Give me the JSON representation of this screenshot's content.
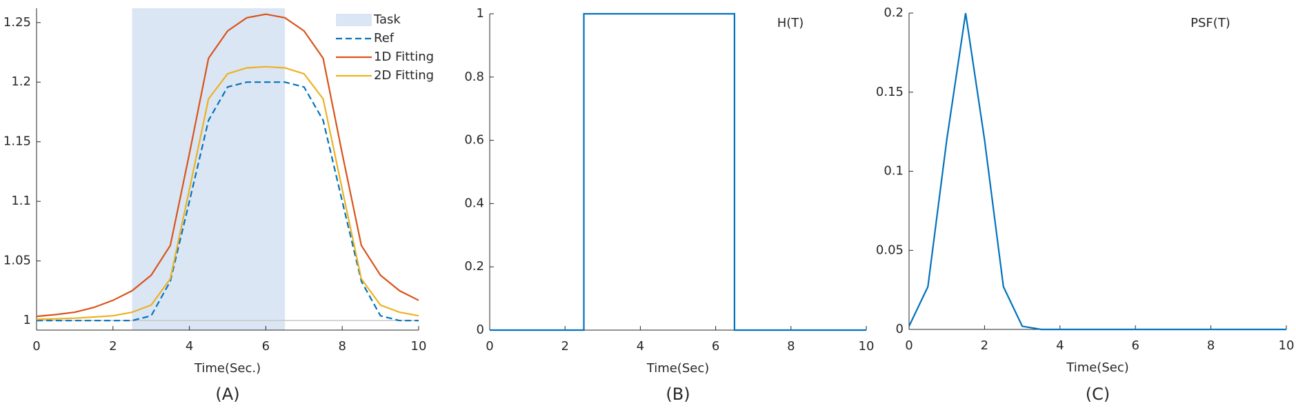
{
  "chart_data": [
    {
      "type": "line",
      "caption": "(A)",
      "x_label": "Time(Sec.)",
      "x": [
        0,
        0.5,
        1,
        1.5,
        2,
        2.5,
        3,
        3.5,
        4,
        4.5,
        5,
        5.5,
        6,
        6.5,
        7,
        7.5,
        8,
        8.5,
        9,
        9.5,
        10
      ],
      "shade": {
        "name": "Task",
        "color": "#dae6f4",
        "range": [
          2.5,
          6.5
        ]
      },
      "series": [
        {
          "name": "Ref",
          "color": "#0072bd",
          "dash": true,
          "values": [
            1,
            1,
            1,
            1,
            1,
            1,
            1.004,
            1.033,
            1.1,
            1.168,
            1.196,
            1.2,
            1.2,
            1.2,
            1.196,
            1.168,
            1.1,
            1.033,
            1.004,
            1,
            1
          ]
        },
        {
          "name": "1D Fitting",
          "color": "#d95319",
          "values": [
            1.0035,
            1.005,
            1.007,
            1.011,
            1.017,
            1.025,
            1.038,
            1.063,
            1.14,
            1.22,
            1.243,
            1.254,
            1.257,
            1.254,
            1.243,
            1.22,
            1.14,
            1.063,
            1.038,
            1.025,
            1.017
          ]
        },
        {
          "name": "2D Fitting",
          "color": "#edb120",
          "values": [
            1.001,
            1.0015,
            1.002,
            1.003,
            1.004,
            1.007,
            1.013,
            1.035,
            1.11,
            1.186,
            1.207,
            1.212,
            1.213,
            1.212,
            1.207,
            1.186,
            1.11,
            1.035,
            1.013,
            1.007,
            1.004
          ]
        }
      ],
      "xlim": [
        0,
        10
      ],
      "xticks": [
        0,
        2,
        4,
        6,
        8,
        10
      ],
      "ylim": [
        0.992,
        1.262
      ],
      "yticks": [
        1,
        1.05,
        1.1,
        1.15,
        1.2,
        1.25
      ],
      "baseline": true
    },
    {
      "type": "line",
      "caption": "(B)",
      "x_label": "Time(Sec)",
      "annotation": "H(T)",
      "color": "#0072bd",
      "x": [
        0,
        2.5,
        2.5,
        6.5,
        6.5,
        10
      ],
      "values": [
        0,
        0,
        1,
        1,
        0,
        0
      ],
      "xlim": [
        0,
        10
      ],
      "xticks": [
        0,
        2,
        4,
        6,
        8,
        10
      ],
      "ylim": [
        0,
        1
      ],
      "yticks": [
        0,
        0.2,
        0.4,
        0.6,
        0.8,
        1
      ]
    },
    {
      "type": "line",
      "caption": "(C)",
      "x_label": "Time(Sec)",
      "annotation": "PSF(T)",
      "color": "#0072bd",
      "x": [
        0,
        0.5,
        1,
        1.5,
        2,
        2.5,
        3,
        3.5,
        4,
        4.5,
        5,
        5.5,
        6,
        6.5,
        7,
        7.5,
        8,
        8.5,
        9,
        9.5,
        10
      ],
      "values": [
        0.002,
        0.027,
        0.12,
        0.2,
        0.12,
        0.027,
        0.002,
        0,
        0,
        0,
        0,
        0,
        0,
        0,
        0,
        0,
        0,
        0,
        0,
        0,
        0
      ],
      "xlim": [
        0,
        10
      ],
      "xticks": [
        0,
        2,
        4,
        6,
        8,
        10
      ],
      "ylim": [
        0,
        0.2
      ],
      "yticks": [
        0,
        0.05,
        0.1,
        0.15,
        0.2
      ]
    }
  ]
}
